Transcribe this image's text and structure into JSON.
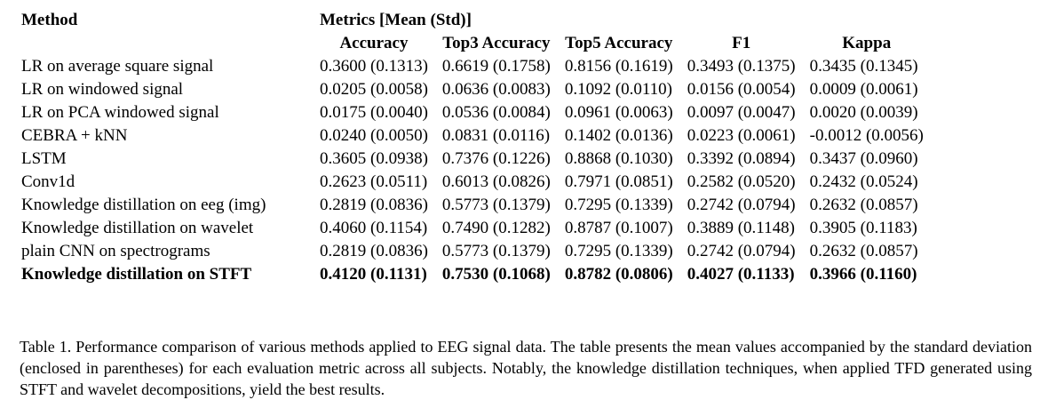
{
  "table": {
    "method_header": "Method",
    "metrics_group_header": "Metrics [Mean (Std)]",
    "metric_columns": [
      "Accuracy",
      "Top3 Accuracy",
      "Top5 Accuracy",
      "F1",
      "Kappa"
    ],
    "rows": [
      {
        "method": "LR on average square signal",
        "values": [
          "0.3600 (0.1313)",
          "0.6619 (0.1758)",
          "0.8156 (0.1619)",
          "0.3493 (0.1375)",
          "0.3435 (0.1345)"
        ]
      },
      {
        "method": "LR on windowed signal",
        "values": [
          "0.0205 (0.0058)",
          "0.0636 (0.0083)",
          "0.1092 (0.0110)",
          "0.0156 (0.0054)",
          "0.0009 (0.0061)"
        ]
      },
      {
        "method": "LR on PCA windowed signal",
        "values": [
          "0.0175 (0.0040)",
          "0.0536 (0.0084)",
          "0.0961 (0.0063)",
          "0.0097 (0.0047)",
          "0.0020 (0.0039)"
        ]
      },
      {
        "method": "CEBRA + kNN",
        "values": [
          "0.0240 (0.0050)",
          "0.0831 (0.0116)",
          "0.1402 (0.0136)",
          "0.0223 (0.0061)",
          "-0.0012 (0.0056)"
        ]
      },
      {
        "method": "LSTM",
        "values": [
          "0.3605 (0.0938)",
          "0.7376 (0.1226)",
          "0.8868 (0.1030)",
          "0.3392 (0.0894)",
          "0.3437 (0.0960)"
        ]
      },
      {
        "method": "Conv1d",
        "values": [
          "0.2623 (0.0511)",
          "0.6013 (0.0826)",
          "0.7971 (0.0851)",
          "0.2582 (0.0520)",
          "0.2432 (0.0524)"
        ]
      },
      {
        "method": "Knowledge distillation on eeg (img)",
        "values": [
          "0.2819 (0.0836)",
          "0.5773 (0.1379)",
          "0.7295 (0.1339)",
          "0.2742 (0.0794)",
          "0.2632 (0.0857)"
        ]
      },
      {
        "method": "Knowledge distillation on wavelet",
        "values": [
          "0.4060 (0.1154)",
          "0.7490 (0.1282)",
          "0.8787 (0.1007)",
          "0.3889 (0.1148)",
          "0.3905 (0.1183)"
        ]
      },
      {
        "method": "plain CNN on spectrograms",
        "values": [
          "0.2819 (0.0836)",
          "0.5773 (0.1379)",
          "0.7295 (0.1339)",
          "0.2742 (0.0794)",
          "0.2632 (0.0857)"
        ]
      },
      {
        "method": "Knowledge distillation on STFT",
        "values": [
          "0.4120 (0.1131)",
          "0.7530 (0.1068)",
          "0.8782 (0.0806)",
          "0.4027 (0.1133)",
          "0.3966 (0.1160)"
        ],
        "bold": true
      }
    ]
  },
  "caption": "Table 1. Performance comparison of various methods applied to EEG signal data. The table presents the mean values accompanied by the standard deviation (enclosed in parentheses) for each evaluation metric across all subjects. Notably, the knowledge distillation techniques, when applied TFD generated using STFT and wavelet decompositions, yield the best results."
}
